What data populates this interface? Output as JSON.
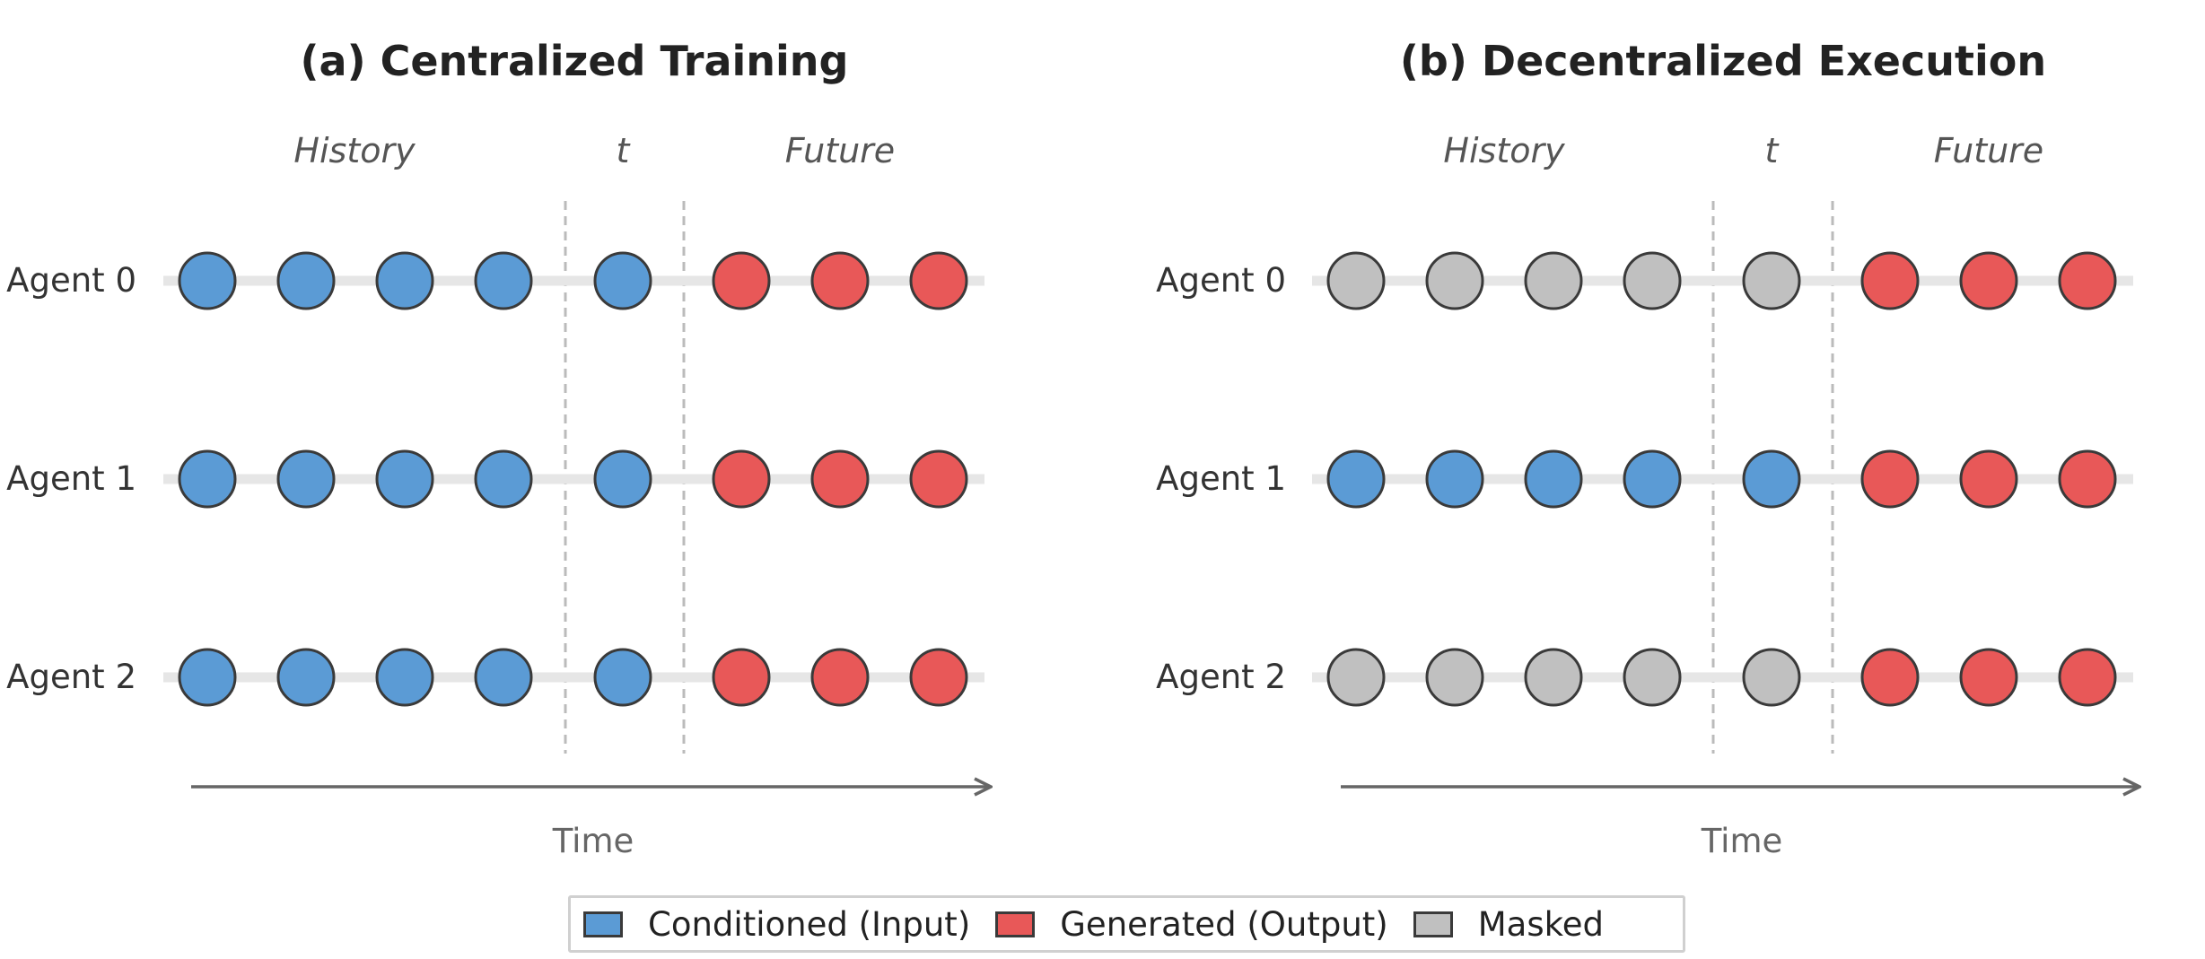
{
  "colors": {
    "conditioned": "#5b9bd5",
    "generated": "#e85858",
    "masked": "#c0c0c0"
  },
  "panels": [
    {
      "title": "(a) Centralized Training",
      "sections": {
        "history": "History",
        "current": "t",
        "future": "Future"
      },
      "agents": [
        {
          "label": "Agent 0",
          "tokens": [
            "conditioned",
            "conditioned",
            "conditioned",
            "conditioned",
            "conditioned",
            "generated",
            "generated",
            "generated"
          ]
        },
        {
          "label": "Agent 1",
          "tokens": [
            "conditioned",
            "conditioned",
            "conditioned",
            "conditioned",
            "conditioned",
            "generated",
            "generated",
            "generated"
          ]
        },
        {
          "label": "Agent 2",
          "tokens": [
            "conditioned",
            "conditioned",
            "conditioned",
            "conditioned",
            "conditioned",
            "generated",
            "generated",
            "generated"
          ]
        }
      ],
      "axis_label": "Time"
    },
    {
      "title": "(b) Decentralized Execution",
      "sections": {
        "history": "History",
        "current": "t",
        "future": "Future"
      },
      "agents": [
        {
          "label": "Agent 0",
          "tokens": [
            "masked",
            "masked",
            "masked",
            "masked",
            "masked",
            "generated",
            "generated",
            "generated"
          ]
        },
        {
          "label": "Agent 1",
          "tokens": [
            "conditioned",
            "conditioned",
            "conditioned",
            "conditioned",
            "conditioned",
            "generated",
            "generated",
            "generated"
          ]
        },
        {
          "label": "Agent 2",
          "tokens": [
            "masked",
            "masked",
            "masked",
            "masked",
            "masked",
            "generated",
            "generated",
            "generated"
          ]
        }
      ],
      "axis_label": "Time"
    }
  ],
  "legend": [
    {
      "key": "conditioned",
      "label": "Conditioned (Input)"
    },
    {
      "key": "generated",
      "label": "Generated (Output)"
    },
    {
      "key": "masked",
      "label": "Masked"
    }
  ]
}
